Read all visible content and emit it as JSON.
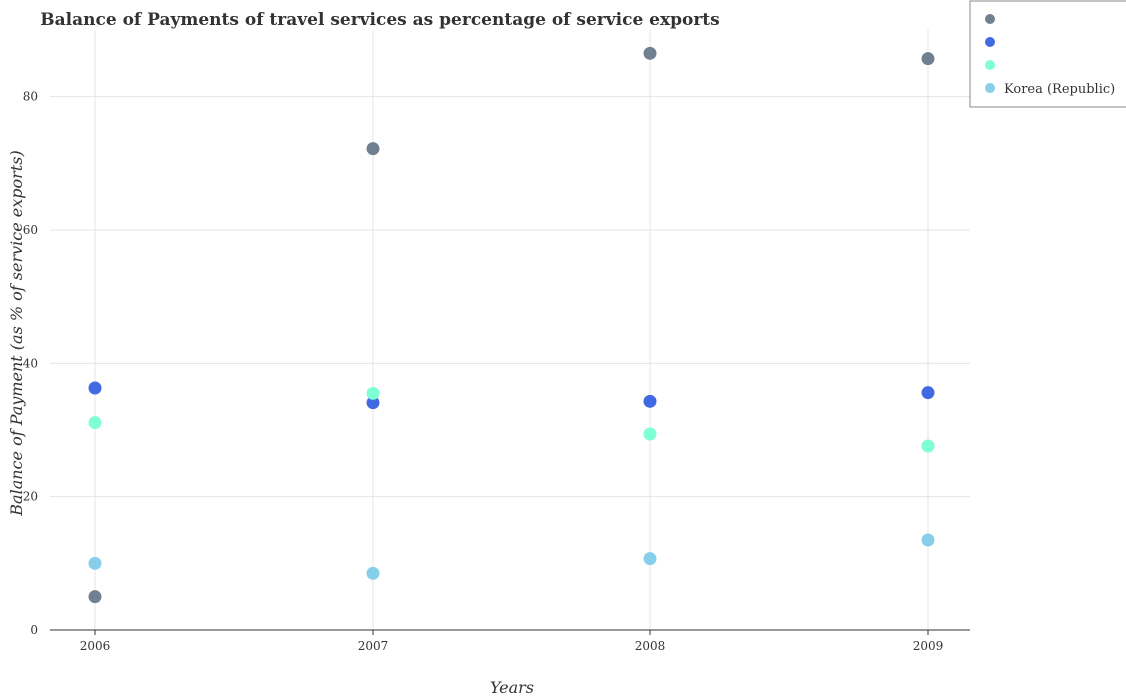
{
  "chart_data": {
    "type": "scatter",
    "title": "Balance of Payments of travel services as percentage of service exports",
    "xlabel": "Years",
    "ylabel": "Balance of Payment (as % of service exports)",
    "categories": [
      "2006",
      "2007",
      "2008",
      "2009"
    ],
    "ylim": [
      0,
      90
    ],
    "yticks": [
      0,
      20,
      40,
      60,
      80
    ],
    "grid": true,
    "legend_position": "top-right",
    "series": [
      {
        "name": "",
        "color": "#708090",
        "values": [
          5.0,
          72.2,
          86.5,
          85.7
        ]
      },
      {
        "name": "",
        "color": "#4169e1",
        "values": [
          36.3,
          34.1,
          34.3,
          35.6
        ]
      },
      {
        "name": "",
        "color": "#7fffd4",
        "values": [
          31.1,
          35.5,
          29.4,
          27.6
        ]
      },
      {
        "name": "Korea (Republic)",
        "color": "#87ceeb",
        "values": [
          10.0,
          8.5,
          10.7,
          13.5
        ]
      }
    ]
  }
}
